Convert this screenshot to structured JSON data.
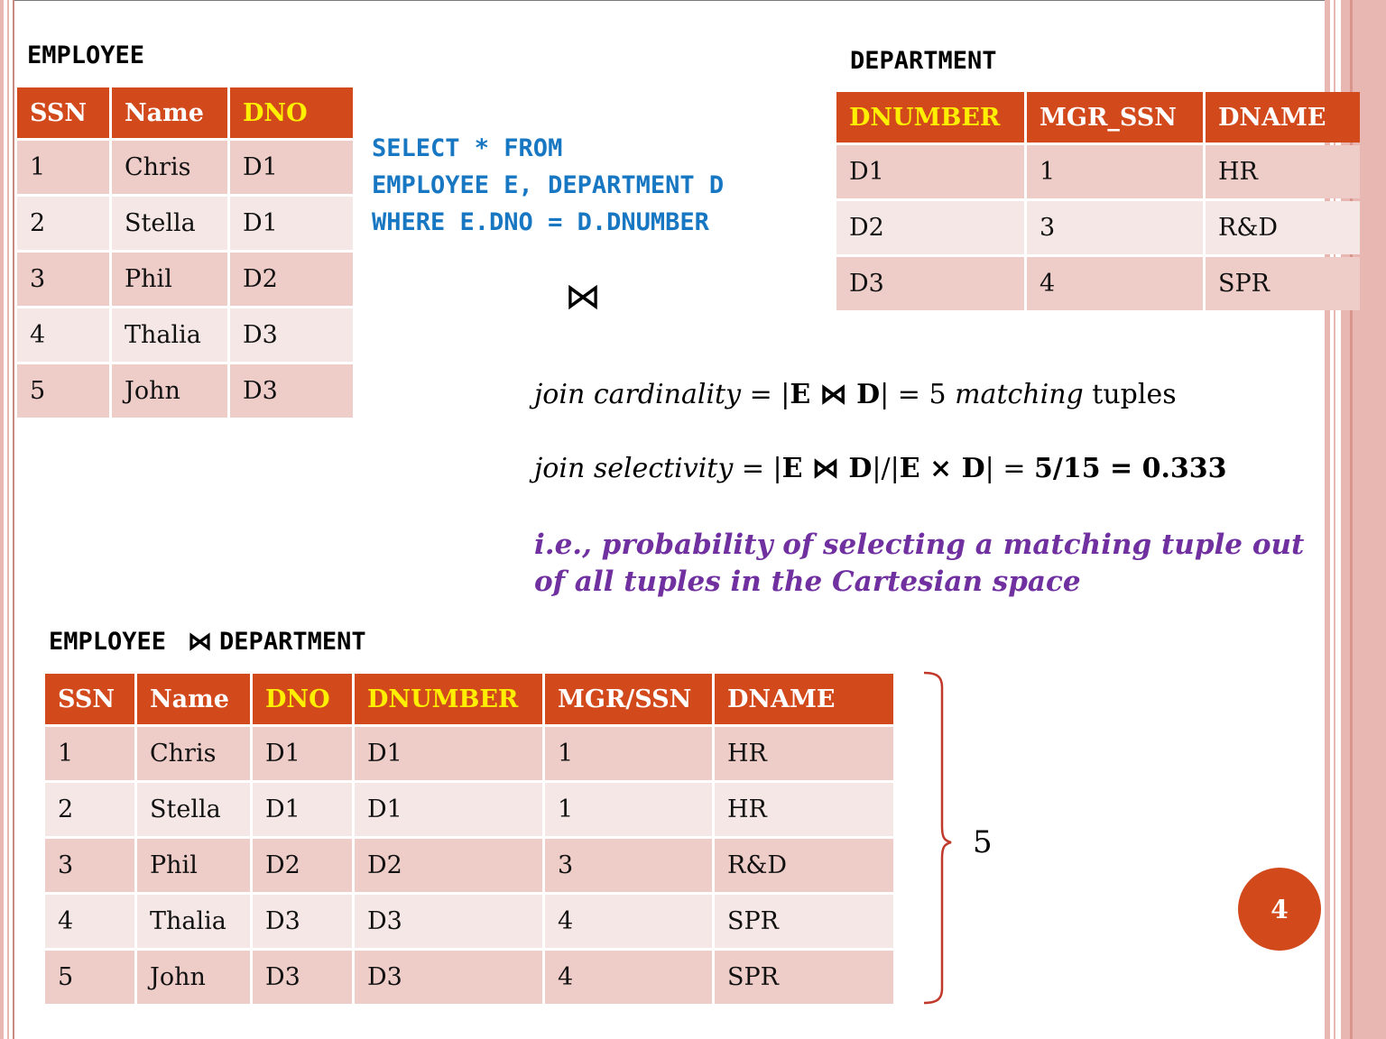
{
  "employee": {
    "caption": "EMPLOYEE",
    "headers": [
      "SSN",
      "Name",
      "DNO"
    ],
    "rows": [
      [
        "1",
        "Chris",
        "D1"
      ],
      [
        "2",
        "Stella",
        "D1"
      ],
      [
        "3",
        "Phil",
        "D2"
      ],
      [
        "4",
        "Thalia",
        "D3"
      ],
      [
        "5",
        "John",
        "D3"
      ]
    ]
  },
  "department": {
    "caption": "DEPARTMENT",
    "headers": [
      "DNUMBER",
      "MGR_SSN",
      "DNAME"
    ],
    "rows": [
      [
        "D1",
        "1",
        "HR"
      ],
      [
        "D2",
        "3",
        "R&D"
      ],
      [
        "D3",
        "4",
        "SPR"
      ]
    ]
  },
  "sql": {
    "line1": "SELECT * FROM",
    "line2": "EMPLOYEE E, DEPARTMENT D",
    "line3": "WHERE E.DNO = D.DNUMBER"
  },
  "join_symbol": "⋈",
  "cardinality": {
    "label": "join cardinality",
    "eq": " = |",
    "expr": "E ⋈ D",
    "eq2": "| = 5 ",
    "italic_word": "matching",
    "rest": " tuples"
  },
  "selectivity": {
    "label": "join selectivity",
    "eq": " = |",
    "expr1": "E ⋈ D",
    "mid": "|/|",
    "expr2": "E × D",
    "eq2": "| = ",
    "result": "5/15 = 0.333"
  },
  "note": {
    "line1": "i.e., probability of selecting a matching tuple out",
    "line2": "of all tuples in the Cartesian space"
  },
  "result": {
    "caption_left": "EMPLOYEE",
    "caption_symbol": "⋈",
    "caption_right": "DEPARTMENT",
    "headers": [
      "SSN",
      "Name",
      "DNO",
      "DNUMBER",
      "MGR/SSN",
      "DNAME"
    ],
    "rows": [
      [
        "1",
        "Chris",
        "D1",
        "D1",
        "1",
        "HR"
      ],
      [
        "2",
        "Stella",
        "D1",
        "D1",
        "1",
        "HR"
      ],
      [
        "3",
        "Phil",
        "D2",
        "D2",
        "3",
        "R&D"
      ],
      [
        "4",
        "Thalia",
        "D3",
        "D3",
        "4",
        "SPR"
      ],
      [
        "5",
        "John",
        "D3",
        "D3",
        "4",
        "SPR"
      ]
    ],
    "brace_label": "5"
  },
  "page_number": "4",
  "colors": {
    "header_bg": "#d2491c",
    "key_header_text": "#ffef00",
    "row_odd": "#eecdc9",
    "row_even": "#f5e7e5",
    "sql_text": "#1877c2",
    "note_text": "#7030a0",
    "brace": "#c0392b"
  }
}
